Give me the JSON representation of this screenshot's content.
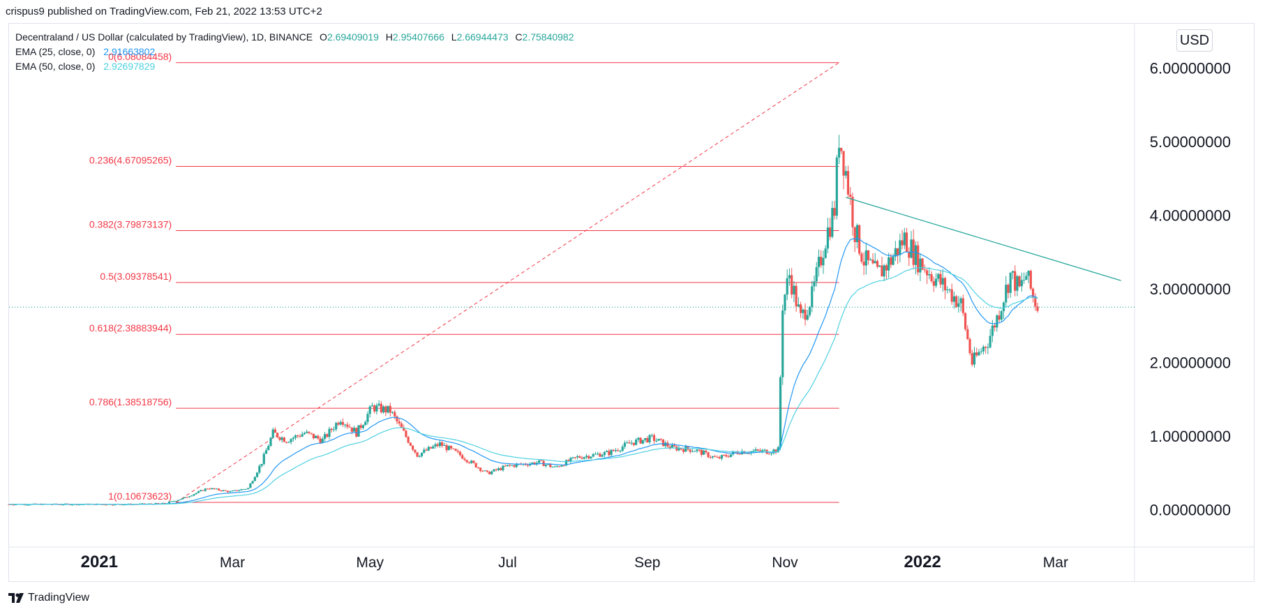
{
  "publisher_line": "crispus9 published on TradingView.com, Feb 21, 2022 13:53 UTC+2",
  "brand": {
    "logo_icon": "tradingview-logo-icon",
    "name": "TradingView"
  },
  "currency_button": "USD",
  "legend": {
    "symbol": "Decentraland / US Dollar (calculated by TradingView), 1D, BINANCE",
    "ohlc": [
      {
        "k": "O",
        "v": "2.69409019"
      },
      {
        "k": "H",
        "v": "2.95407666"
      },
      {
        "k": "L",
        "v": "2.66944473"
      },
      {
        "k": "C",
        "v": "2.75840982"
      }
    ],
    "ema25": {
      "label": "EMA (25, close, 0)",
      "value": "2.91663802"
    },
    "ema50": {
      "label": "EMA (50, close, 0)",
      "value": "2.92697829"
    }
  },
  "colors": {
    "up": "#26a69a",
    "down": "#ef5350",
    "fib": "#f23645",
    "ema25": "#2196f3",
    "ema50": "#4dd0e1",
    "trend": "#26a69a",
    "grid_border": "#e0e3eb"
  },
  "chart_data": {
    "type": "candlestick",
    "x_ticks": [
      "2021",
      "Mar",
      "May",
      "Jul",
      "Sep",
      "Nov",
      "2022",
      "Mar"
    ],
    "x_tick_dates": [
      "2021-01-01",
      "2021-03-01",
      "2021-05-01",
      "2021-07-01",
      "2021-09-01",
      "2021-11-01",
      "2022-01-01",
      "2022-03-01"
    ],
    "y_ticks": [
      "0.00000000",
      "1.00000000",
      "2.00000000",
      "3.00000000",
      "4.00000000",
      "5.00000000",
      "6.00000000"
    ],
    "y_range": [
      -0.5,
      6.6
    ],
    "x_range": [
      "2020-11-22",
      "2022-04-05"
    ],
    "last_price": 2.7584,
    "fib_levels": [
      {
        "label": "0(6.08084458)",
        "value": 6.08084458
      },
      {
        "label": "0.236(4.67095265)",
        "value": 4.67095265
      },
      {
        "label": "0.382(3.79873137)",
        "value": 3.79873137
      },
      {
        "label": "0.5(3.09378541)",
        "value": 3.09378541
      },
      {
        "label": "0.618(2.38883944)",
        "value": 2.38883944
      },
      {
        "label": "0.786(1.38518756)",
        "value": 1.38518756
      },
      {
        "label": "1(0.10673623)",
        "value": 0.10673623
      }
    ],
    "fib_range_dates": [
      "2021-02-04",
      "2021-11-25"
    ],
    "fib_trend_line": {
      "from": [
        "2021-02-04",
        0.10673623
      ],
      "to": [
        "2021-11-25",
        6.08084458
      ]
    },
    "trendline": {
      "from": [
        "2021-11-28",
        4.25
      ],
      "to": [
        "2022-03-30",
        3.12
      ]
    },
    "price_path": [
      [
        "2020-11-22",
        0.08
      ],
      [
        "2020-12-15",
        0.08
      ],
      [
        "2021-01-15",
        0.08
      ],
      [
        "2021-01-30",
        0.09
      ],
      [
        "2021-02-08",
        0.17
      ],
      [
        "2021-02-18",
        0.3
      ],
      [
        "2021-02-28",
        0.25
      ],
      [
        "2021-03-08",
        0.3
      ],
      [
        "2021-03-14",
        0.65
      ],
      [
        "2021-03-19",
        1.05
      ],
      [
        "2021-03-25",
        0.95
      ],
      [
        "2021-04-02",
        1.05
      ],
      [
        "2021-04-10",
        0.95
      ],
      [
        "2021-04-18",
        1.25
      ],
      [
        "2021-04-25",
        1.05
      ],
      [
        "2021-05-02",
        1.4
      ],
      [
        "2021-05-10",
        1.35
      ],
      [
        "2021-05-17",
        1.0
      ],
      [
        "2021-05-22",
        0.75
      ],
      [
        "2021-06-01",
        0.9
      ],
      [
        "2021-06-10",
        0.75
      ],
      [
        "2021-06-22",
        0.5
      ],
      [
        "2021-07-01",
        0.6
      ],
      [
        "2021-07-15",
        0.65
      ],
      [
        "2021-07-22",
        0.58
      ],
      [
        "2021-08-01",
        0.72
      ],
      [
        "2021-08-15",
        0.78
      ],
      [
        "2021-08-25",
        0.92
      ],
      [
        "2021-09-03",
        0.98
      ],
      [
        "2021-09-12",
        0.85
      ],
      [
        "2021-09-22",
        0.82
      ],
      [
        "2021-10-02",
        0.7
      ],
      [
        "2021-10-12",
        0.8
      ],
      [
        "2021-10-25",
        0.8
      ],
      [
        "2021-10-29",
        0.82
      ],
      [
        "2021-10-31",
        2.8
      ],
      [
        "2021-11-03",
        3.2
      ],
      [
        "2021-11-08",
        2.6
      ],
      [
        "2021-11-13",
        2.9
      ],
      [
        "2021-11-19",
        3.7
      ],
      [
        "2021-11-23",
        4.1
      ],
      [
        "2021-11-25",
        5.1
      ],
      [
        "2021-11-28",
        4.6
      ],
      [
        "2021-12-02",
        3.8
      ],
      [
        "2021-12-06",
        3.4
      ],
      [
        "2021-12-12",
        3.2
      ],
      [
        "2021-12-18",
        3.4
      ],
      [
        "2021-12-24",
        3.7
      ],
      [
        "2021-12-30",
        3.4
      ],
      [
        "2022-01-05",
        3.2
      ],
      [
        "2022-01-12",
        3.0
      ],
      [
        "2022-01-18",
        2.8
      ],
      [
        "2022-01-23",
        2.0
      ],
      [
        "2022-01-30",
        2.3
      ],
      [
        "2022-02-04",
        2.7
      ],
      [
        "2022-02-09",
        3.2
      ],
      [
        "2022-02-13",
        3.0
      ],
      [
        "2022-02-16",
        3.2
      ],
      [
        "2022-02-19",
        2.9
      ],
      [
        "2022-02-21",
        2.76
      ]
    ]
  }
}
